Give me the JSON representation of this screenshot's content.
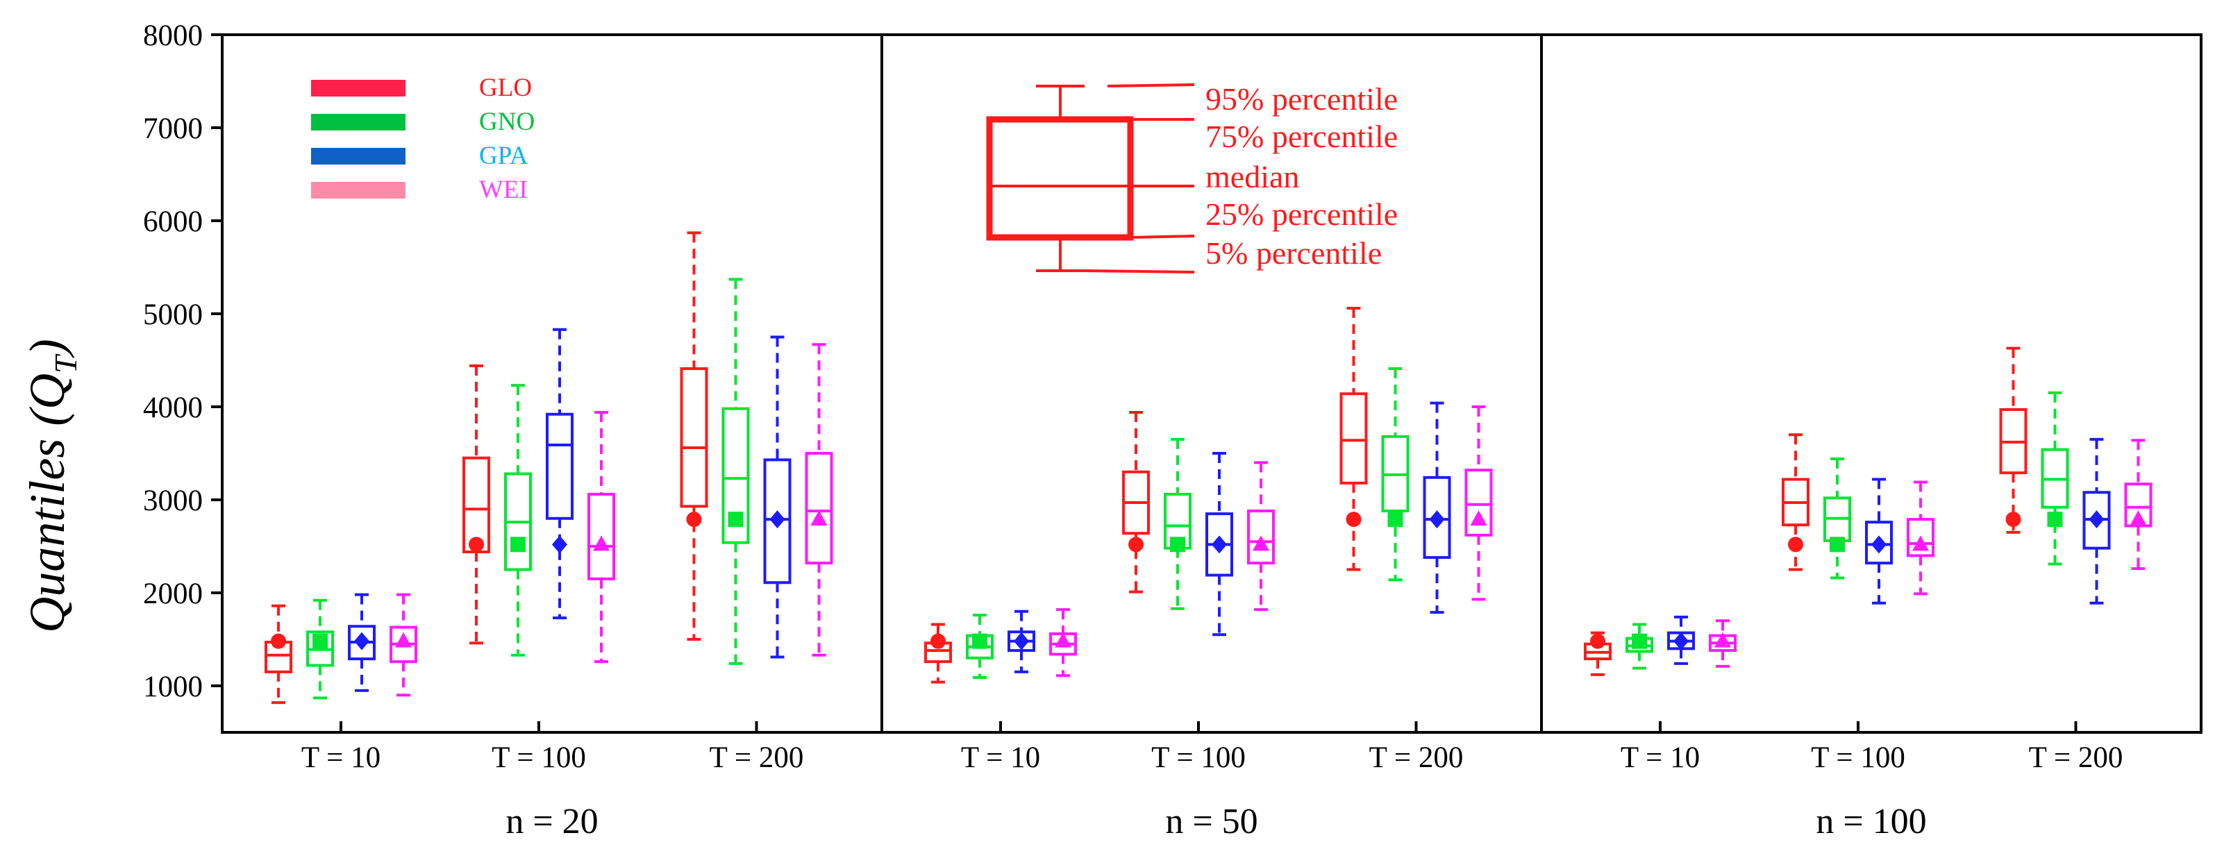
{
  "chart_data": {
    "type": "boxplot",
    "ylabel": "Quantiles (Q_T)",
    "ylabel_main": "Quantiles (",
    "ylabel_sym": "Q",
    "ylabel_sub": "T",
    "ylabel_close": ")",
    "ylim": [
      500,
      8000
    ],
    "yticks": [
      1000,
      2000,
      3000,
      4000,
      5000,
      6000,
      7000,
      8000
    ],
    "return_periods": [
      "T = 10",
      "T = 100",
      "T = 200"
    ],
    "distributions": [
      {
        "name": "GLO",
        "color": "#ff1a1a",
        "legend_color": "#ff1f4b",
        "label_color": "#ff1a1a",
        "marker": "circle"
      },
      {
        "name": "GNO",
        "color": "#00e632",
        "legend_color": "#00c040",
        "label_color": "#00c040",
        "marker": "square"
      },
      {
        "name": "GPA",
        "color": "#1c1cff",
        "legend_color": "#1060c8",
        "label_color": "#00b4f0",
        "marker": "diamond"
      },
      {
        "name": "WEI",
        "color": "#ff1aff",
        "legend_color": "#ff8aa8",
        "label_color": "#ff40ff",
        "marker": "triangle"
      }
    ],
    "key": {
      "labels": [
        "95% percentile",
        "75% percentile",
        "median",
        "25% percentile",
        "5% percentile"
      ],
      "color": "#ff1a1a"
    },
    "panels": [
      {
        "label": "n = 20",
        "groups": [
          {
            "T": "T = 10",
            "true_value": 1480,
            "boxes": [
              {
                "p5": 820,
                "q1": 1150,
                "median": 1330,
                "q3": 1470,
                "p95": 1860
              },
              {
                "p5": 870,
                "q1": 1220,
                "median": 1390,
                "q3": 1580,
                "p95": 1920
              },
              {
                "p5": 950,
                "q1": 1290,
                "median": 1470,
                "q3": 1640,
                "p95": 1980
              },
              {
                "p5": 900,
                "q1": 1260,
                "median": 1450,
                "q3": 1630,
                "p95": 1980
              }
            ]
          },
          {
            "T": "T = 100",
            "true_value": 2520,
            "boxes": [
              {
                "p5": 1460,
                "q1": 2440,
                "median": 2900,
                "q3": 3450,
                "p95": 4440
              },
              {
                "p5": 1330,
                "q1": 2250,
                "median": 2760,
                "q3": 3280,
                "p95": 4230
              },
              {
                "p5": 1730,
                "q1": 2800,
                "median": 3590,
                "q3": 3920,
                "p95": 4830
              },
              {
                "p5": 1260,
                "q1": 2150,
                "median": 2500,
                "q3": 3060,
                "p95": 3940
              }
            ]
          },
          {
            "T": "T = 200",
            "true_value": 2790,
            "boxes": [
              {
                "p5": 1500,
                "q1": 2930,
                "median": 3560,
                "q3": 4410,
                "p95": 5870
              },
              {
                "p5": 1240,
                "q1": 2540,
                "median": 3230,
                "q3": 3980,
                "p95": 5370
              },
              {
                "p5": 1310,
                "q1": 2110,
                "median": 2790,
                "q3": 3430,
                "p95": 4750
              },
              {
                "p5": 1330,
                "q1": 2320,
                "median": 2880,
                "q3": 3500,
                "p95": 4670
              }
            ]
          }
        ]
      },
      {
        "label": "n = 50",
        "groups": [
          {
            "T": "T = 10",
            "true_value": 1480,
            "boxes": [
              {
                "p5": 1040,
                "q1": 1260,
                "median": 1380,
                "q3": 1460,
                "p95": 1660
              },
              {
                "p5": 1090,
                "q1": 1300,
                "median": 1420,
                "q3": 1540,
                "p95": 1760
              },
              {
                "p5": 1150,
                "q1": 1380,
                "median": 1480,
                "q3": 1580,
                "p95": 1800
              },
              {
                "p5": 1110,
                "q1": 1340,
                "median": 1450,
                "q3": 1560,
                "p95": 1820
              }
            ]
          },
          {
            "T": "T = 100",
            "true_value": 2520,
            "boxes": [
              {
                "p5": 2010,
                "q1": 2640,
                "median": 2970,
                "q3": 3300,
                "p95": 3940
              },
              {
                "p5": 1830,
                "q1": 2480,
                "median": 2720,
                "q3": 3060,
                "p95": 3650
              },
              {
                "p5": 1550,
                "q1": 2190,
                "median": 2520,
                "q3": 2850,
                "p95": 3500
              },
              {
                "p5": 1820,
                "q1": 2320,
                "median": 2550,
                "q3": 2880,
                "p95": 3400
              }
            ]
          },
          {
            "T": "T = 200",
            "true_value": 2790,
            "boxes": [
              {
                "p5": 2250,
                "q1": 3180,
                "median": 3640,
                "q3": 4140,
                "p95": 5060
              },
              {
                "p5": 2140,
                "q1": 2880,
                "median": 3270,
                "q3": 3680,
                "p95": 4410
              },
              {
                "p5": 1790,
                "q1": 2380,
                "median": 2790,
                "q3": 3240,
                "p95": 4040
              },
              {
                "p5": 1930,
                "q1": 2620,
                "median": 2950,
                "q3": 3320,
                "p95": 4000
              }
            ]
          }
        ]
      },
      {
        "label": "n = 100",
        "groups": [
          {
            "T": "T = 10",
            "true_value": 1480,
            "boxes": [
              {
                "p5": 1120,
                "q1": 1290,
                "median": 1360,
                "q3": 1450,
                "p95": 1570
              },
              {
                "p5": 1190,
                "q1": 1370,
                "median": 1430,
                "q3": 1510,
                "p95": 1660
              },
              {
                "p5": 1240,
                "q1": 1400,
                "median": 1480,
                "q3": 1570,
                "p95": 1740
              },
              {
                "p5": 1210,
                "q1": 1380,
                "median": 1460,
                "q3": 1540,
                "p95": 1700
              }
            ]
          },
          {
            "T": "T = 100",
            "true_value": 2520,
            "boxes": [
              {
                "p5": 2250,
                "q1": 2730,
                "median": 2970,
                "q3": 3220,
                "p95": 3700
              },
              {
                "p5": 2160,
                "q1": 2560,
                "median": 2800,
                "q3": 3020,
                "p95": 3440
              },
              {
                "p5": 1890,
                "q1": 2320,
                "median": 2520,
                "q3": 2760,
                "p95": 3220
              },
              {
                "p5": 1990,
                "q1": 2400,
                "median": 2530,
                "q3": 2790,
                "p95": 3190
              }
            ]
          },
          {
            "T": "T = 200",
            "true_value": 2790,
            "boxes": [
              {
                "p5": 2650,
                "q1": 3290,
                "median": 3620,
                "q3": 3970,
                "p95": 4630
              },
              {
                "p5": 2310,
                "q1": 2920,
                "median": 3220,
                "q3": 3540,
                "p95": 4150
              },
              {
                "p5": 1890,
                "q1": 2480,
                "median": 2790,
                "q3": 3080,
                "p95": 3650
              },
              {
                "p5": 2260,
                "q1": 2720,
                "median": 2920,
                "q3": 3170,
                "p95": 3640
              }
            ]
          }
        ]
      }
    ]
  }
}
